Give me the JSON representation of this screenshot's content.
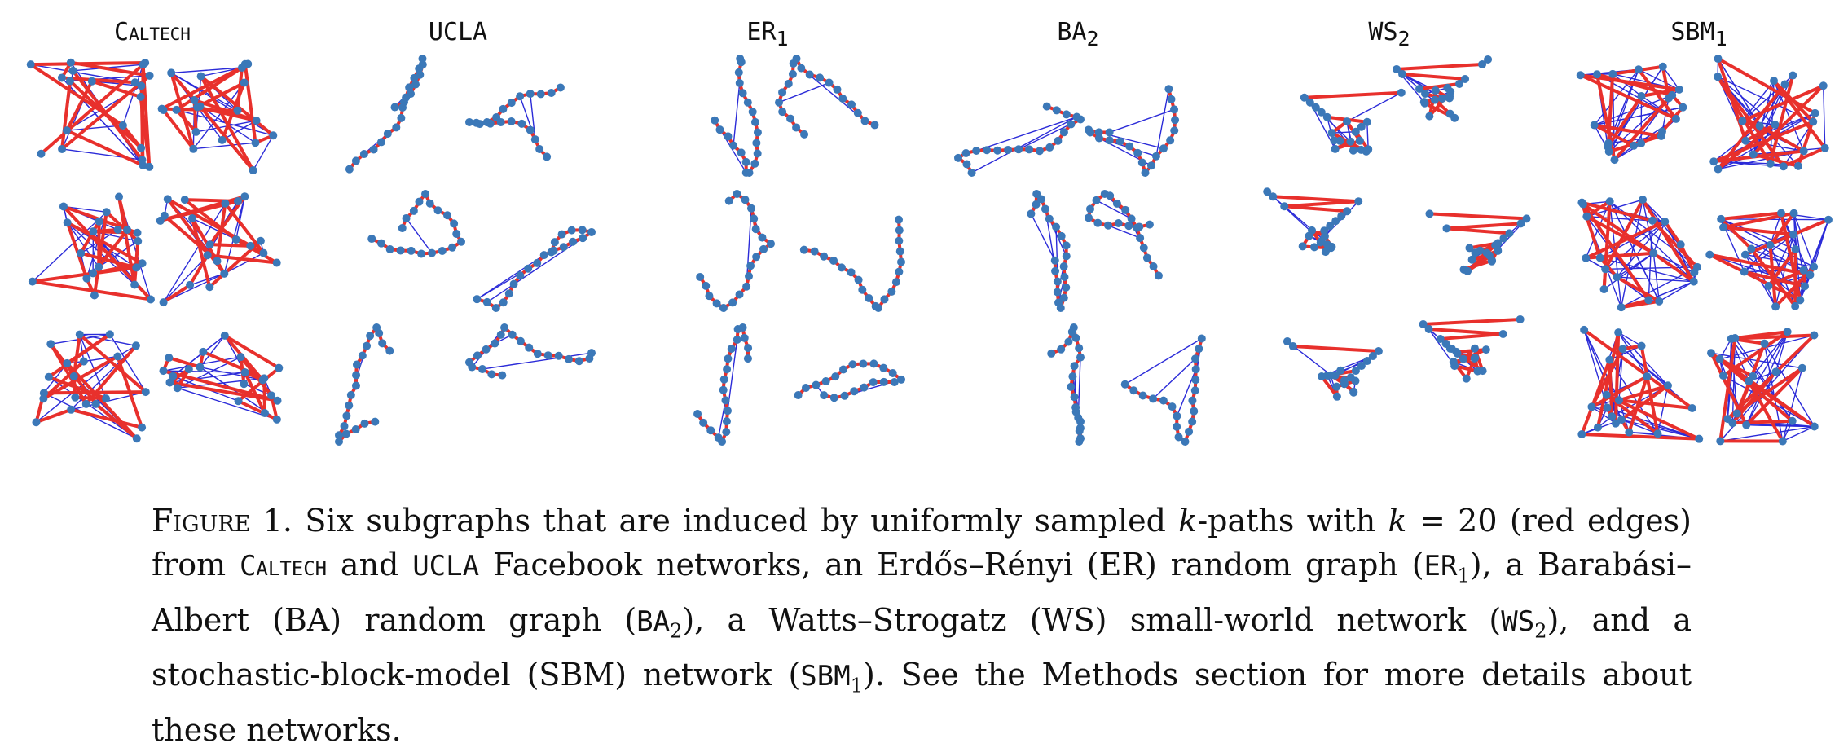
{
  "columns": [
    {
      "name": "Caltech",
      "sub": ""
    },
    {
      "name": "UCLA",
      "sub": ""
    },
    {
      "name": "ER",
      "sub": "1"
    },
    {
      "name": "BA",
      "sub": "2"
    },
    {
      "name": "WS",
      "sub": "2"
    },
    {
      "name": "SBM",
      "sub": "1"
    }
  ],
  "colors": {
    "red_edge": "#e8302c",
    "blue_edge": "#2b2bd8",
    "node": "#3b78b8"
  },
  "caption": {
    "label": "Figure 1.",
    "t1": " Six subgraphs that are induced by uniformly sampled ",
    "k1": "k",
    "t2": "-paths with ",
    "k2": "k",
    "t3": " = 20 (red edges) from ",
    "caltech": "Caltech",
    "t4": " and ",
    "ucla": "UCLA",
    "t5": " Facebook networks, an Erdős–Rényi (ER) random graph (",
    "er": "ER",
    "er_sub": "1",
    "t6": "), a Barabási–Albert (BA) random graph (",
    "ba": "BA",
    "ba_sub": "2",
    "t7": "), a Watts–Strogatz (WS) small-world network (",
    "ws": "WS",
    "ws_sub": "2",
    "t8": "), and a stochastic-block-model (SBM) network (",
    "sbm": "SBM",
    "sbm_sub": "1",
    "t9": "). See the Methods section for more details about these networks."
  }
}
